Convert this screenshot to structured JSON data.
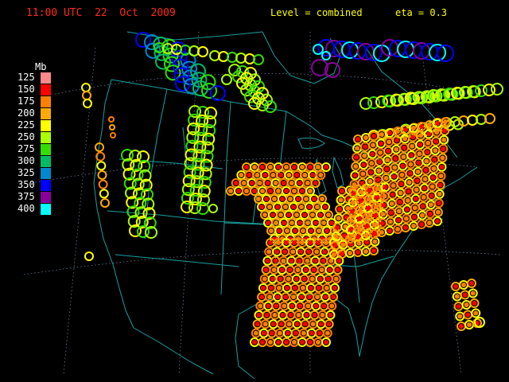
{
  "header": {
    "time": "11:00 UTC  22  Oct  2009",
    "level": "Level = combined",
    "eta": "eta = 0.3"
  },
  "legend": {
    "unit": "Mb",
    "entries": [
      {
        "label": "125",
        "color": "#ff8888"
      },
      {
        "label": "150",
        "color": "#ff0000"
      },
      {
        "label": "175",
        "color": "#ff7f00"
      },
      {
        "label": "200",
        "color": "#ffaa00"
      },
      {
        "label": "225",
        "color": "#ffff00"
      },
      {
        "label": "250",
        "color": "#aaff00"
      },
      {
        "label": "275",
        "color": "#33dd00"
      },
      {
        "label": "300",
        "color": "#00bb66"
      },
      {
        "label": "325",
        "color": "#0088cc"
      },
      {
        "label": "350",
        "color": "#0000ff"
      },
      {
        "label": "375",
        "color": "#880099"
      },
      {
        "label": "400",
        "color": "#00ffff"
      }
    ]
  },
  "map": {
    "background": "#000000",
    "coastline_color": "#1aa0a0",
    "grid_color": "#6f8fb0"
  }
}
